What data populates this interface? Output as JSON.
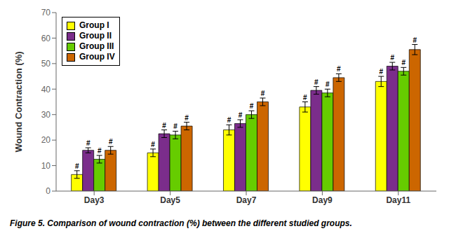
{
  "chart_data": {
    "type": "bar",
    "categories": [
      "Day3",
      "Day5",
      "Day7",
      "Day9",
      "Day11"
    ],
    "series": [
      {
        "name": "Group I",
        "color": "#FFFF00",
        "values": [
          6.5,
          15.0,
          24.0,
          33.0,
          43.0
        ],
        "errors": [
          1.5,
          1.5,
          2.0,
          2.0,
          2.0
        ],
        "annotations": [
          "#",
          "#",
          "#",
          "#",
          "#"
        ]
      },
      {
        "name": "Group II",
        "color": "#7B2D8B",
        "values": [
          16.0,
          22.5,
          26.5,
          39.5,
          49.0
        ],
        "errors": [
          1.0,
          1.5,
          1.5,
          1.5,
          1.5
        ],
        "annotations": [
          "#",
          "#",
          "#",
          "#",
          "#"
        ]
      },
      {
        "name": "Group III",
        "color": "#66CC00",
        "values": [
          12.5,
          22.0,
          30.0,
          38.5,
          47.0
        ],
        "errors": [
          1.5,
          1.5,
          1.5,
          1.5,
          1.5
        ],
        "annotations": [
          "#",
          "#",
          "#",
          "#",
          "#"
        ]
      },
      {
        "name": "Group IV",
        "color": "#CC6600",
        "values": [
          16.0,
          25.5,
          35.0,
          44.5,
          55.5
        ],
        "errors": [
          1.5,
          1.5,
          1.5,
          1.5,
          2.0
        ],
        "annotations": [
          "#",
          "#",
          "#",
          "#",
          "#"
        ]
      }
    ],
    "ylabel": "Wound Contraction (%)",
    "ylim": [
      0,
      70
    ],
    "yticks": [
      0,
      10,
      20,
      30,
      40,
      50,
      60,
      70
    ],
    "legend": "upper left",
    "grid": false,
    "caption": "Figure 5. Comparison of wound contraction (%) between the different studied groups."
  }
}
